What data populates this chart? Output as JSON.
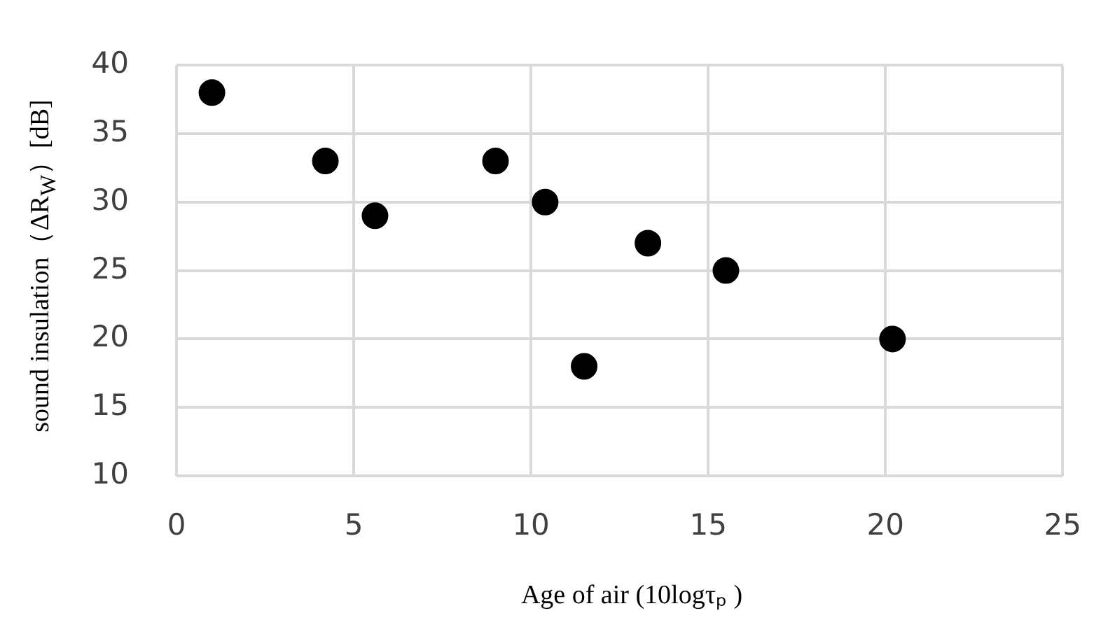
{
  "chart_data": {
    "type": "scatter",
    "xlabel": "Age of air (10logτₚ )",
    "ylabel": "sound insulation（ΔR$_{W}$）[dB]",
    "series": [
      {
        "color": "#000000",
        "x": [
          1.0,
          4.2,
          5.6,
          9.0,
          10.4,
          11.5,
          13.3,
          15.5,
          20.2
        ],
        "values": [
          38,
          33,
          29,
          33,
          30,
          18,
          27,
          25,
          20
        ]
      }
    ],
    "xlim": [
      0,
      25
    ],
    "xticks": [
      0,
      5,
      10,
      15,
      20,
      25
    ],
    "ylim": [
      10,
      40
    ],
    "yticks": [
      10,
      15,
      20,
      25,
      30,
      35,
      40
    ],
    "grid": true,
    "legend": false,
    "marker": "circle"
  }
}
